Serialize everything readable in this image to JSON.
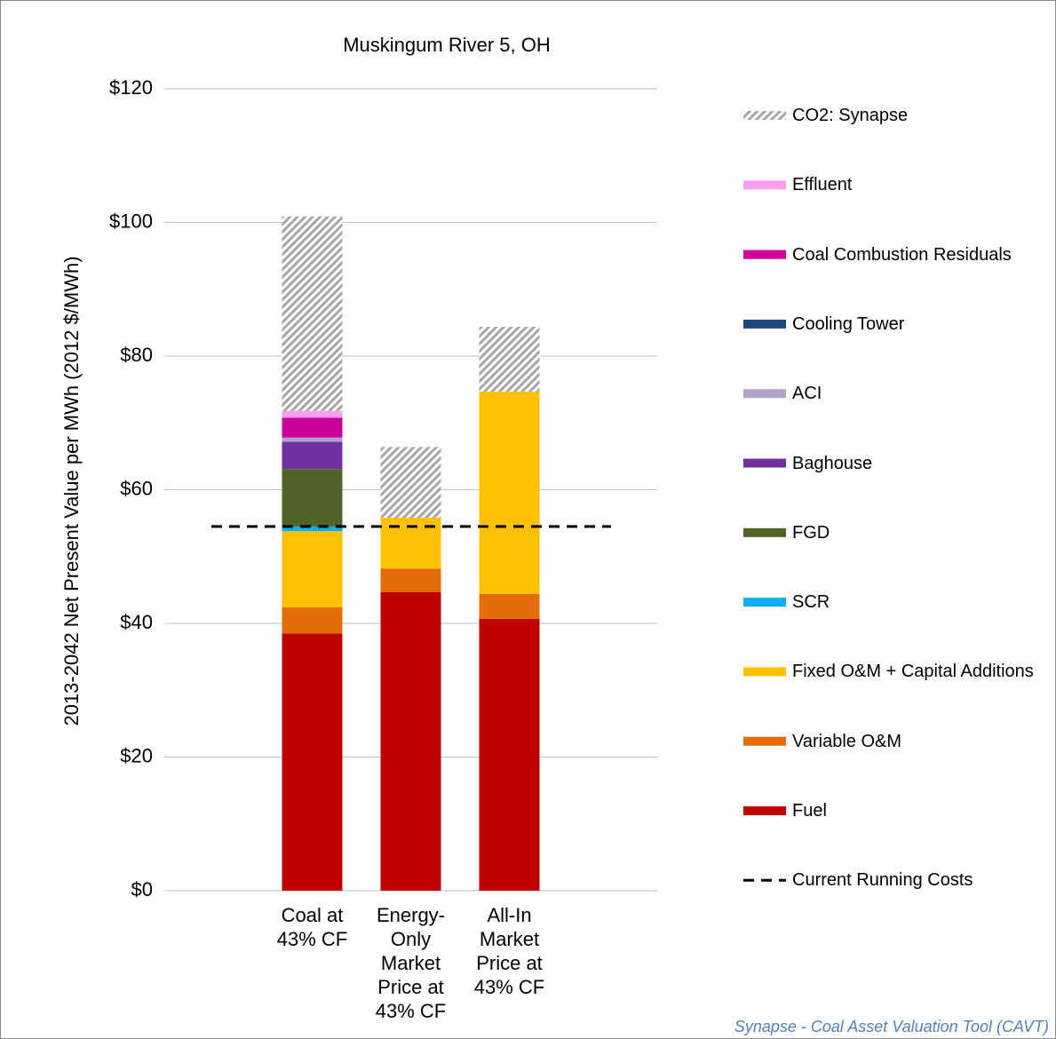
{
  "chart_data": {
    "type": "stacked_bar",
    "title": "Muskingum River 5, OH",
    "y_label": "2013-2042 Net Present Value per MWh (2012 $/MWh)",
    "categories": [
      "Coal at 43% CF",
      "Energy-Only Market Price at 43% CF",
      "All-In Market Price at 43% CF"
    ],
    "series": [
      {
        "name": "Fuel",
        "color": "#c00000",
        "values": [
          38.5,
          44.7,
          40.7
        ]
      },
      {
        "name": "Variable O&M",
        "color": "#e36c09",
        "values": [
          3.9,
          3.5,
          3.7
        ]
      },
      {
        "name": "Fixed O&M + Capital Additions",
        "color": "#ffc000",
        "values": [
          11.4,
          7.6,
          30.3
        ]
      },
      {
        "name": "SCR",
        "color": "#00b0f0",
        "values": [
          0.7,
          0,
          0
        ]
      },
      {
        "name": "FGD",
        "color": "#4f6228",
        "values": [
          8.6,
          0,
          0
        ]
      },
      {
        "name": "Baghouse",
        "color": "#7030a0",
        "values": [
          4.1,
          0,
          0
        ]
      },
      {
        "name": "ACI",
        "color": "#b3a2c7",
        "values": [
          0.6,
          0,
          0
        ]
      },
      {
        "name": "Cooling Tower",
        "color": "#1f497d",
        "values": [
          0,
          0,
          0
        ]
      },
      {
        "name": "Coal Combustion Residuals",
        "color": "#cc0099",
        "values": [
          3.0,
          0,
          0
        ]
      },
      {
        "name": "Effluent",
        "color": "#f99ff0",
        "values": [
          1.0,
          0,
          0
        ]
      },
      {
        "name": "CO2: Synapse",
        "color": "#a6a6a6",
        "pattern": "hatch",
        "values": [
          29.1,
          10.6,
          9.7
        ]
      }
    ],
    "reference_line": {
      "name": "Current Running Costs",
      "value": 54.5,
      "color": "#000000"
    },
    "ylim": [
      0,
      120
    ],
    "yticks": [
      {
        "value": 0,
        "label": "$0"
      },
      {
        "value": 20,
        "label": "$20"
      },
      {
        "value": 40,
        "label": "$40"
      },
      {
        "value": 60,
        "label": "$60"
      },
      {
        "value": 80,
        "label": "$80"
      },
      {
        "value": 100,
        "label": "$100"
      },
      {
        "value": 120,
        "label": "$120"
      }
    ],
    "grid": true,
    "legend": "right",
    "source": "Synapse - Coal Asset Valuation Tool (CAVT)"
  }
}
